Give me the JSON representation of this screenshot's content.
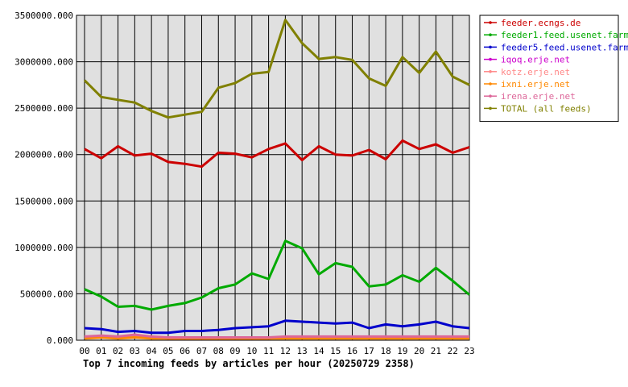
{
  "chart_data": {
    "type": "line",
    "title": "",
    "caption": "Top 7 incoming feeds by articles per hour (20250729 2358)",
    "xlabel": "",
    "ylabel": "",
    "categories": [
      "00",
      "01",
      "02",
      "03",
      "04",
      "05",
      "06",
      "07",
      "08",
      "09",
      "10",
      "11",
      "12",
      "13",
      "14",
      "15",
      "16",
      "17",
      "18",
      "19",
      "20",
      "21",
      "22",
      "23"
    ],
    "ylim": [
      0,
      3500000
    ],
    "yticks": [
      0,
      500000,
      1000000,
      1500000,
      2000000,
      2500000,
      3000000,
      3500000
    ],
    "ytick_labels": [
      "0.000",
      "500000.000",
      "1000000.000",
      "1500000.000",
      "2000000.000",
      "2500000.000",
      "3000000.000",
      "3500000.000"
    ],
    "grid": true,
    "legend_position": "right",
    "series": [
      {
        "name": "feeder.ecngs.de",
        "color": "#cc0000",
        "values": [
          2060000,
          1960000,
          2090000,
          1990000,
          2010000,
          1920000,
          1900000,
          1870000,
          2020000,
          2010000,
          1970000,
          2060000,
          2120000,
          1940000,
          2090000,
          2000000,
          1990000,
          2050000,
          1950000,
          2150000,
          2060000,
          2110000,
          2020000,
          2080000
        ]
      },
      {
        "name": "feeder1.feed.usenet.farm",
        "color": "#00aa00",
        "values": [
          550000,
          470000,
          360000,
          370000,
          330000,
          370000,
          400000,
          460000,
          560000,
          600000,
          720000,
          660000,
          1070000,
          990000,
          710000,
          830000,
          790000,
          580000,
          600000,
          700000,
          630000,
          780000,
          640000,
          490000
        ]
      },
      {
        "name": "feeder5.feed.usenet.farm",
        "color": "#0000cc",
        "values": [
          130000,
          120000,
          90000,
          100000,
          80000,
          80000,
          100000,
          100000,
          110000,
          130000,
          140000,
          150000,
          210000,
          200000,
          190000,
          180000,
          190000,
          130000,
          170000,
          150000,
          170000,
          200000,
          150000,
          130000
        ]
      },
      {
        "name": "iqoq.erje.net",
        "color": "#cc00cc",
        "values": [
          30000,
          30000,
          30000,
          60000,
          30000,
          20000,
          20000,
          20000,
          20000,
          20000,
          20000,
          20000,
          30000,
          30000,
          30000,
          30000,
          30000,
          30000,
          30000,
          30000,
          30000,
          30000,
          30000,
          30000
        ]
      },
      {
        "name": "kotz.erje.net",
        "color": "#ff8888",
        "values": [
          30000,
          40000,
          30000,
          50000,
          30000,
          20000,
          20000,
          20000,
          20000,
          20000,
          20000,
          20000,
          30000,
          30000,
          30000,
          30000,
          30000,
          30000,
          30000,
          30000,
          30000,
          30000,
          30000,
          30000
        ]
      },
      {
        "name": "ixni.erje.net",
        "color": "#ff8800",
        "values": [
          20000,
          30000,
          20000,
          30000,
          20000,
          20000,
          20000,
          20000,
          20000,
          20000,
          20000,
          20000,
          20000,
          20000,
          20000,
          20000,
          20000,
          20000,
          20000,
          20000,
          20000,
          20000,
          20000,
          20000
        ]
      },
      {
        "name": "irena.erje.net",
        "color": "#dd6699",
        "values": [
          40000,
          50000,
          40000,
          60000,
          40000,
          30000,
          30000,
          30000,
          30000,
          30000,
          30000,
          30000,
          40000,
          40000,
          40000,
          40000,
          40000,
          40000,
          40000,
          40000,
          40000,
          40000,
          40000,
          40000
        ]
      },
      {
        "name": "TOTAL (all feeds)",
        "color": "#808000",
        "values": [
          2800000,
          2620000,
          2590000,
          2560000,
          2470000,
          2400000,
          2430000,
          2460000,
          2720000,
          2770000,
          2870000,
          2890000,
          3450000,
          3200000,
          3030000,
          3050000,
          3020000,
          2820000,
          2740000,
          3050000,
          2880000,
          3110000,
          2840000,
          2750000
        ]
      }
    ]
  }
}
